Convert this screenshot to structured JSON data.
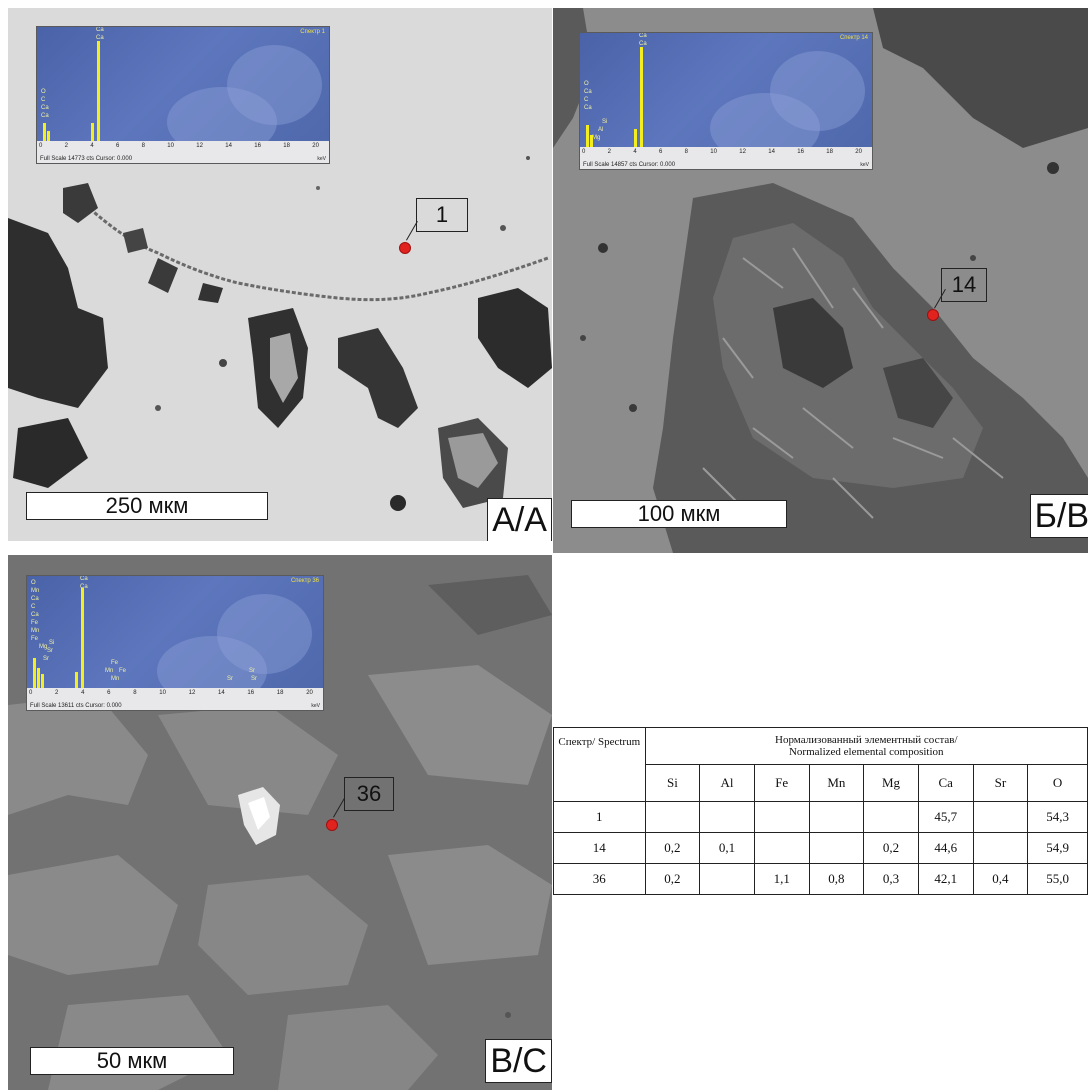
{
  "panels": {
    "a": {
      "label": "А/А",
      "scale_bar": "250 мкм",
      "point": "1",
      "spectrum": {
        "title": "Спектр 1",
        "full_scale": "Full Scale 14773 cts Cursor: 0.000",
        "elements_left": [
          "O",
          "C",
          "Ca",
          "Ca"
        ],
        "peak_labels": [
          "Ca",
          "Ca"
        ]
      }
    },
    "b": {
      "label": "Б/B",
      "scale_bar": "100 мкм",
      "point": "14",
      "spectrum": {
        "title": "Спектр 14",
        "full_scale": "Full Scale 14857 cts Cursor: 0.000",
        "elements_left": [
          "O",
          "Ca",
          "C",
          "Ca",
          "Si",
          "Al",
          "Mg"
        ],
        "peak_labels": [
          "Ca",
          "Ca"
        ]
      }
    },
    "c": {
      "label": "В/C",
      "scale_bar": "50 мкм",
      "point": "36",
      "spectrum": {
        "title": "Спектр 36",
        "full_scale": "Full Scale 13611 cts Cursor: 0.000",
        "elements_left": [
          "O",
          "Mn",
          "Ca",
          "C",
          "Ca",
          "Fe",
          "Mn",
          "Fe",
          "Mg",
          "Si",
          "Sr",
          "Sr"
        ],
        "peak_labels": [
          "Ca",
          "Ca"
        ],
        "minor_labels": [
          "Fe",
          "Mn",
          "Fe",
          "Mn",
          "Sr",
          "Sr",
          "Sr"
        ]
      }
    }
  },
  "spectrum_axis": {
    "ticks": [
      "0",
      "2",
      "4",
      "6",
      "8",
      "10",
      "12",
      "14",
      "16",
      "18",
      "20"
    ],
    "unit": "keV"
  },
  "table": {
    "spectrum_header": "Спектр/ Spectrum",
    "composition_header_ru": "Нормализованный элементный состав/",
    "composition_header_en": "Normalized elemental composition",
    "elements": [
      "Si",
      "Al",
      "Fe",
      "Mn",
      "Mg",
      "Ca",
      "Sr",
      "O"
    ],
    "rows": [
      {
        "spectrum": "1",
        "values": [
          "",
          "",
          "",
          "",
          "",
          "45,7",
          "",
          "54,3"
        ]
      },
      {
        "spectrum": "14",
        "values": [
          "0,2",
          "0,1",
          "",
          "",
          "0,2",
          "44,6",
          "",
          "54,9"
        ]
      },
      {
        "spectrum": "36",
        "values": [
          "0,2",
          "",
          "1,1",
          "0,8",
          "0,3",
          "42,1",
          "0,4",
          "55,0"
        ]
      }
    ]
  }
}
